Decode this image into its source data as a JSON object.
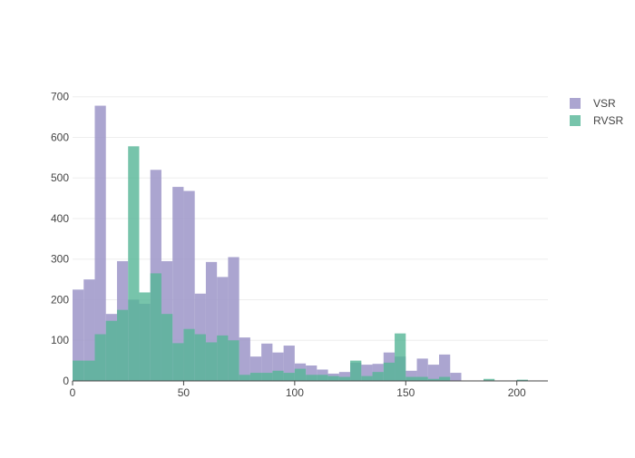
{
  "chart_data": {
    "type": "bar",
    "mode": "overlay-histogram",
    "bin_width": 5,
    "bin_start": 0,
    "xlim": [
      0,
      214
    ],
    "ylim": [
      0,
      715
    ],
    "x_ticks": [
      0,
      50,
      100,
      150,
      200
    ],
    "y_ticks": [
      0,
      100,
      200,
      300,
      400,
      500,
      600,
      700
    ],
    "grid": true,
    "legend_position": "top-right",
    "series": [
      {
        "name": "VSR",
        "color": "#9c95c8",
        "opacity": 0.85,
        "values": [
          225,
          250,
          678,
          165,
          295,
          200,
          190,
          520,
          295,
          478,
          468,
          215,
          293,
          256,
          305,
          107,
          60,
          92,
          70,
          87,
          43,
          38,
          28,
          18,
          22,
          45,
          40,
          42,
          70,
          60,
          25,
          55,
          40,
          65,
          20,
          0,
          0,
          0,
          0,
          0,
          2
        ]
      },
      {
        "name": "RVSR",
        "color": "#55b596",
        "opacity": 0.8,
        "values": [
          50,
          50,
          115,
          148,
          175,
          578,
          218,
          265,
          165,
          93,
          128,
          115,
          95,
          112,
          100,
          15,
          20,
          20,
          25,
          20,
          30,
          15,
          15,
          12,
          10,
          50,
          12,
          22,
          45,
          117,
          10,
          10,
          5,
          10,
          0,
          0,
          0,
          5,
          0,
          0,
          3
        ]
      }
    ]
  }
}
